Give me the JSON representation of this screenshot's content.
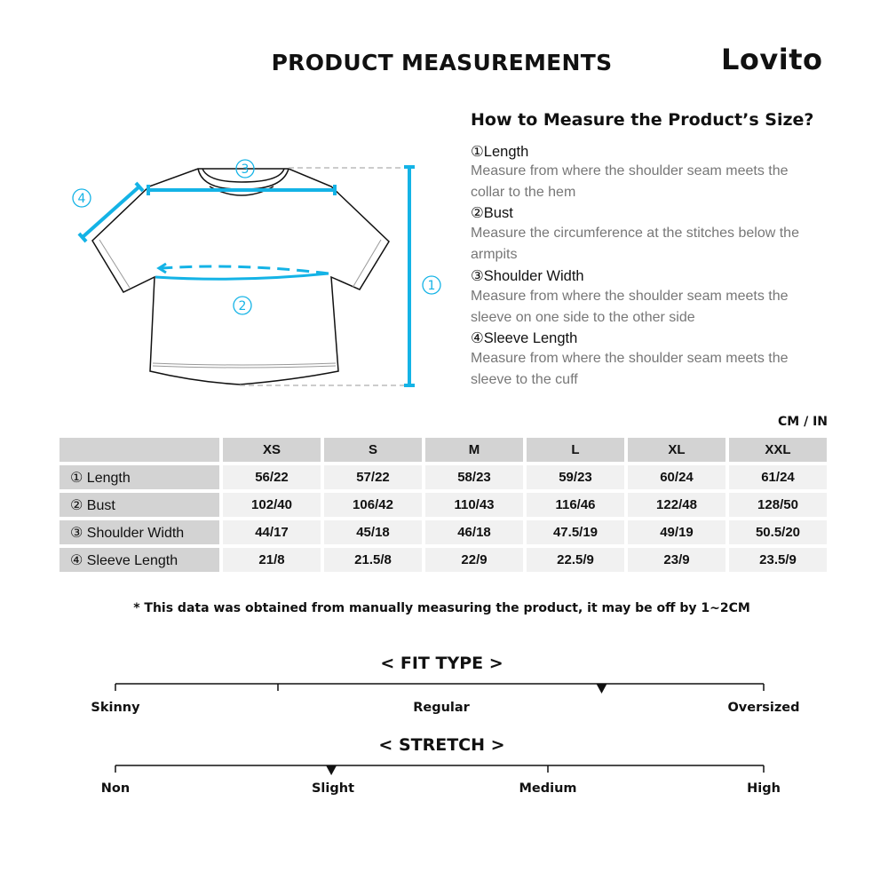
{
  "header": {
    "title": "PRODUCT MEASUREMENTS",
    "logo": "Lovito"
  },
  "diagram": {
    "markers": [
      "①",
      "②",
      "③",
      "④"
    ],
    "accent_color": "#14b3e6"
  },
  "guide": {
    "heading": "How to Measure the Product’s Size?",
    "steps": [
      {
        "label": "①Length",
        "desc": "Measure from where the shoulder seam meets the collar to the hem"
      },
      {
        "label": "②Bust",
        "desc": "Measure the circumference at the stitches below the armpits"
      },
      {
        "label": "③Shoulder Width",
        "desc": "Measure from where the shoulder seam meets the sleeve on one side to the other side"
      },
      {
        "label": "④Sleeve Length",
        "desc": "Measure from where the shoulder seam meets the sleeve to the cuff"
      }
    ]
  },
  "size_table": {
    "unit": "CM / IN",
    "sizes": [
      "XS",
      "S",
      "M",
      "L",
      "XL",
      "XXL"
    ],
    "rows": [
      {
        "label": "① Length",
        "values": [
          "56/22",
          "57/22",
          "58/23",
          "59/23",
          "60/24",
          "61/24"
        ]
      },
      {
        "label": "② Bust",
        "values": [
          "102/40",
          "106/42",
          "110/43",
          "116/46",
          "122/48",
          "128/50"
        ]
      },
      {
        "label": "③ Shoulder Width",
        "values": [
          "44/17",
          "45/18",
          "46/18",
          "47.5/19",
          "49/19",
          "50.5/20"
        ]
      },
      {
        "label": "④ Sleeve Length",
        "values": [
          "21/8",
          "21.5/8",
          "22/9",
          "22.5/9",
          "23/9",
          "23.5/9"
        ]
      }
    ]
  },
  "note": "* This data was obtained from manually measuring the product, it may be off by 1~2CM",
  "fit_type": {
    "title": "< FIT TYPE >",
    "labels": [
      "Skinny",
      "Regular",
      "Oversized"
    ],
    "level": 0.75
  },
  "stretch": {
    "title": "< STRETCH >",
    "labels": [
      "Non",
      "Slight",
      "Medium",
      "High"
    ],
    "level": 0.333
  }
}
